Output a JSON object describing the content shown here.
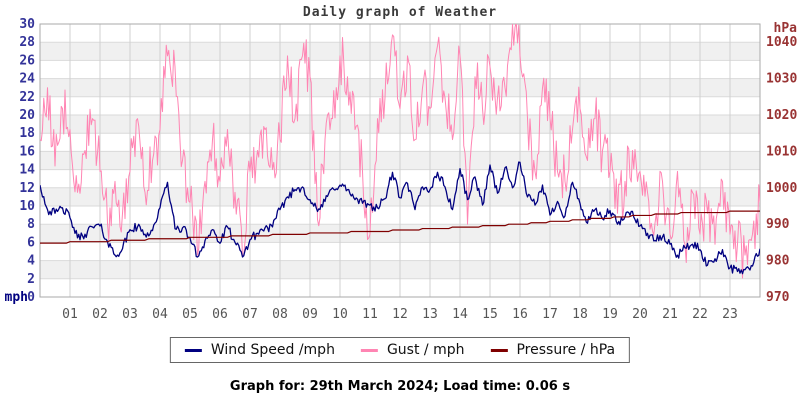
{
  "title": "Daily graph of Weather",
  "footer": "Graph for: 29th March 2024; Load time: 0.06 s",
  "legend": {
    "items": [
      {
        "label": "Wind Speed /mph",
        "color": "#000080"
      },
      {
        "label": "Gust / mph",
        "color": "#ff85b3"
      },
      {
        "label": "Pressure / hPa",
        "color": "#7f0000"
      }
    ]
  },
  "chart_data": {
    "type": "line",
    "title": "Daily graph of Weather",
    "x": {
      "unit": "hour of day",
      "range": [
        0,
        24
      ],
      "tick_labels": [
        "01",
        "02",
        "03",
        "04",
        "05",
        "06",
        "07",
        "08",
        "09",
        "10",
        "11",
        "12",
        "13",
        "14",
        "15",
        "16",
        "17",
        "18",
        "19",
        "20",
        "21",
        "22",
        "23"
      ]
    },
    "left_axis": {
      "label": "mph",
      "range": [
        0,
        30
      ],
      "ticks": [
        0,
        2,
        4,
        6,
        8,
        10,
        12,
        14,
        16,
        18,
        20,
        22,
        24,
        26,
        28,
        30
      ],
      "tick_color": "#333399"
    },
    "right_axis": {
      "label": "hPa",
      "range": [
        970,
        1045
      ],
      "ticks": [
        970,
        980,
        990,
        1000,
        1010,
        1020,
        1030,
        1040
      ],
      "tick_color": "#993333"
    },
    "legend_position": "bottom",
    "grid": true,
    "style": {
      "band_colors": [
        "#ffffff",
        "#f0f0f0"
      ],
      "grid_color": "#d0d0d0",
      "hgrid_color": "#dadada",
      "border_color": "#aaaaaa"
    },
    "render": {
      "seed": 42
    },
    "series": [
      {
        "name": "Wind Speed /mph",
        "axis": "left",
        "color": "#000080",
        "width": 1.3,
        "z": 2,
        "x_step_hours": 0.25,
        "upsample": 6,
        "jitter": 0.5,
        "clamp_min": 1.5,
        "values": [
          12.3,
          9.6,
          9.2,
          9.8,
          8.7,
          6.5,
          6.9,
          7.7,
          7.8,
          6.1,
          4.6,
          5.3,
          7.4,
          7.7,
          6.9,
          7.3,
          9.8,
          12.6,
          7.5,
          7.6,
          6.5,
          4.4,
          6.2,
          7.4,
          5.9,
          7.7,
          6.0,
          4.4,
          6.3,
          7.0,
          7.6,
          7.7,
          9.6,
          11.0,
          11.8,
          12.1,
          10.7,
          9.4,
          10.5,
          12.0,
          12.3,
          11.8,
          10.7,
          10.3,
          10.1,
          9.8,
          10.8,
          13.7,
          10.9,
          12.5,
          9.6,
          12.1,
          11.8,
          13.7,
          12.1,
          9.6,
          14.1,
          10.7,
          13.2,
          10.1,
          14.5,
          11.4,
          14.2,
          12.0,
          14.8,
          11.0,
          10.1,
          12.3,
          9.0,
          10.5,
          8.9,
          12.6,
          10.3,
          8.1,
          9.6,
          8.6,
          9.5,
          8.0,
          8.8,
          9.4,
          7.8,
          7.0,
          6.2,
          6.6,
          5.8,
          4.6,
          5.4,
          5.8,
          5.2,
          3.5,
          4.2,
          5.2,
          3.2,
          2.8,
          3.0,
          3.4,
          5.3
        ]
      },
      {
        "name": "Gust / mph",
        "axis": "left",
        "color": "#ff85b3",
        "width": 1,
        "z": 1,
        "x_step_hours": 0.25,
        "upsample": 6,
        "jitter": 3.0,
        "clamp_min": 2.0,
        "clamp_max": 30.2,
        "values": [
          17.3,
          23.0,
          14.4,
          20.7,
          18.4,
          11.5,
          16.1,
          19.6,
          13.8,
          8.1,
          12.7,
          9.2,
          13.8,
          19.6,
          11.5,
          15.0,
          18.4,
          26.5,
          25.3,
          15.0,
          10.4,
          4.6,
          12.7,
          17.3,
          12.7,
          18.4,
          11.5,
          4.6,
          13.8,
          16.1,
          18.4,
          14.0,
          17.3,
          26.5,
          19.6,
          26.5,
          24.2,
          8.5,
          17.3,
          19.6,
          26.5,
          24.2,
          18.4,
          13.8,
          6.9,
          19.6,
          21.9,
          28.8,
          20.7,
          26.5,
          17.3,
          23.0,
          20.7,
          27.6,
          21.9,
          17.3,
          26.5,
          8.0,
          24.2,
          20.7,
          25.3,
          21.9,
          23.0,
          30.0,
          26.5,
          19.6,
          13.8,
          23.0,
          19.6,
          13.8,
          12.7,
          18.4,
          20.7,
          15.0,
          19.6,
          16.1,
          13.8,
          9.2,
          12.7,
          16.1,
          13.8,
          11.5,
          8.1,
          12.7,
          6.9,
          13.8,
          5.8,
          11.5,
          6.9,
          9.2,
          5.8,
          12.7,
          6.9,
          5.8,
          4.6,
          6.9,
          10.4
        ]
      },
      {
        "name": "Pressure / hPa",
        "axis": "right",
        "color": "#7f0000",
        "width": 1.2,
        "z": 3,
        "x_step_hours": 1,
        "upsample": 8,
        "jitter": 0,
        "quantize": 0.4,
        "values": [
          984.8,
          985.0,
          985.3,
          985.6,
          986.0,
          986.2,
          986.5,
          986.8,
          987.1,
          987.4,
          987.7,
          988.0,
          988.3,
          988.7,
          989.1,
          989.5,
          990.0,
          990.6,
          991.2,
          991.8,
          992.4,
          992.9,
          993.2,
          993.4,
          993.5
        ]
      }
    ]
  }
}
